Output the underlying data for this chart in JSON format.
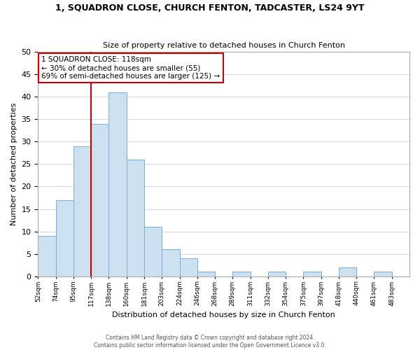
{
  "title": "1, SQUADRON CLOSE, CHURCH FENTON, TADCASTER, LS24 9YT",
  "subtitle": "Size of property relative to detached houses in Church Fenton",
  "xlabel": "Distribution of detached houses by size in Church Fenton",
  "ylabel": "Number of detached properties",
  "bar_heights": [
    9,
    17,
    29,
    34,
    41,
    26,
    11,
    6,
    4,
    1,
    0,
    1,
    0,
    1,
    0,
    1,
    0,
    2,
    0,
    1,
    0
  ],
  "bar_color": "#cce0f0",
  "bar_edge_color": "#7ab0d0",
  "grid_color": "#d0dde8",
  "vline_bin": 3,
  "vline_color": "#cc0000",
  "annotation_text": "1 SQUADRON CLOSE: 118sqm\n← 30% of detached houses are smaller (55)\n69% of semi-detached houses are larger (125) →",
  "annotation_box_color": "#ffffff",
  "annotation_box_edge": "#cc0000",
  "ylim": [
    0,
    50
  ],
  "yticks": [
    0,
    5,
    10,
    15,
    20,
    25,
    30,
    35,
    40,
    45,
    50
  ],
  "tick_labels": [
    "52sqm",
    "74sqm",
    "95sqm",
    "117sqm",
    "138sqm",
    "160sqm",
    "181sqm",
    "203sqm",
    "224sqm",
    "246sqm",
    "268sqm",
    "289sqm",
    "311sqm",
    "332sqm",
    "354sqm",
    "375sqm",
    "397sqm",
    "418sqm",
    "440sqm",
    "461sqm",
    "483sqm"
  ],
  "footer_line1": "Contains HM Land Registry data © Crown copyright and database right 2024.",
  "footer_line2": "Contains public sector information licensed under the Open Government Licence v3.0.",
  "background_color": "#ffffff"
}
